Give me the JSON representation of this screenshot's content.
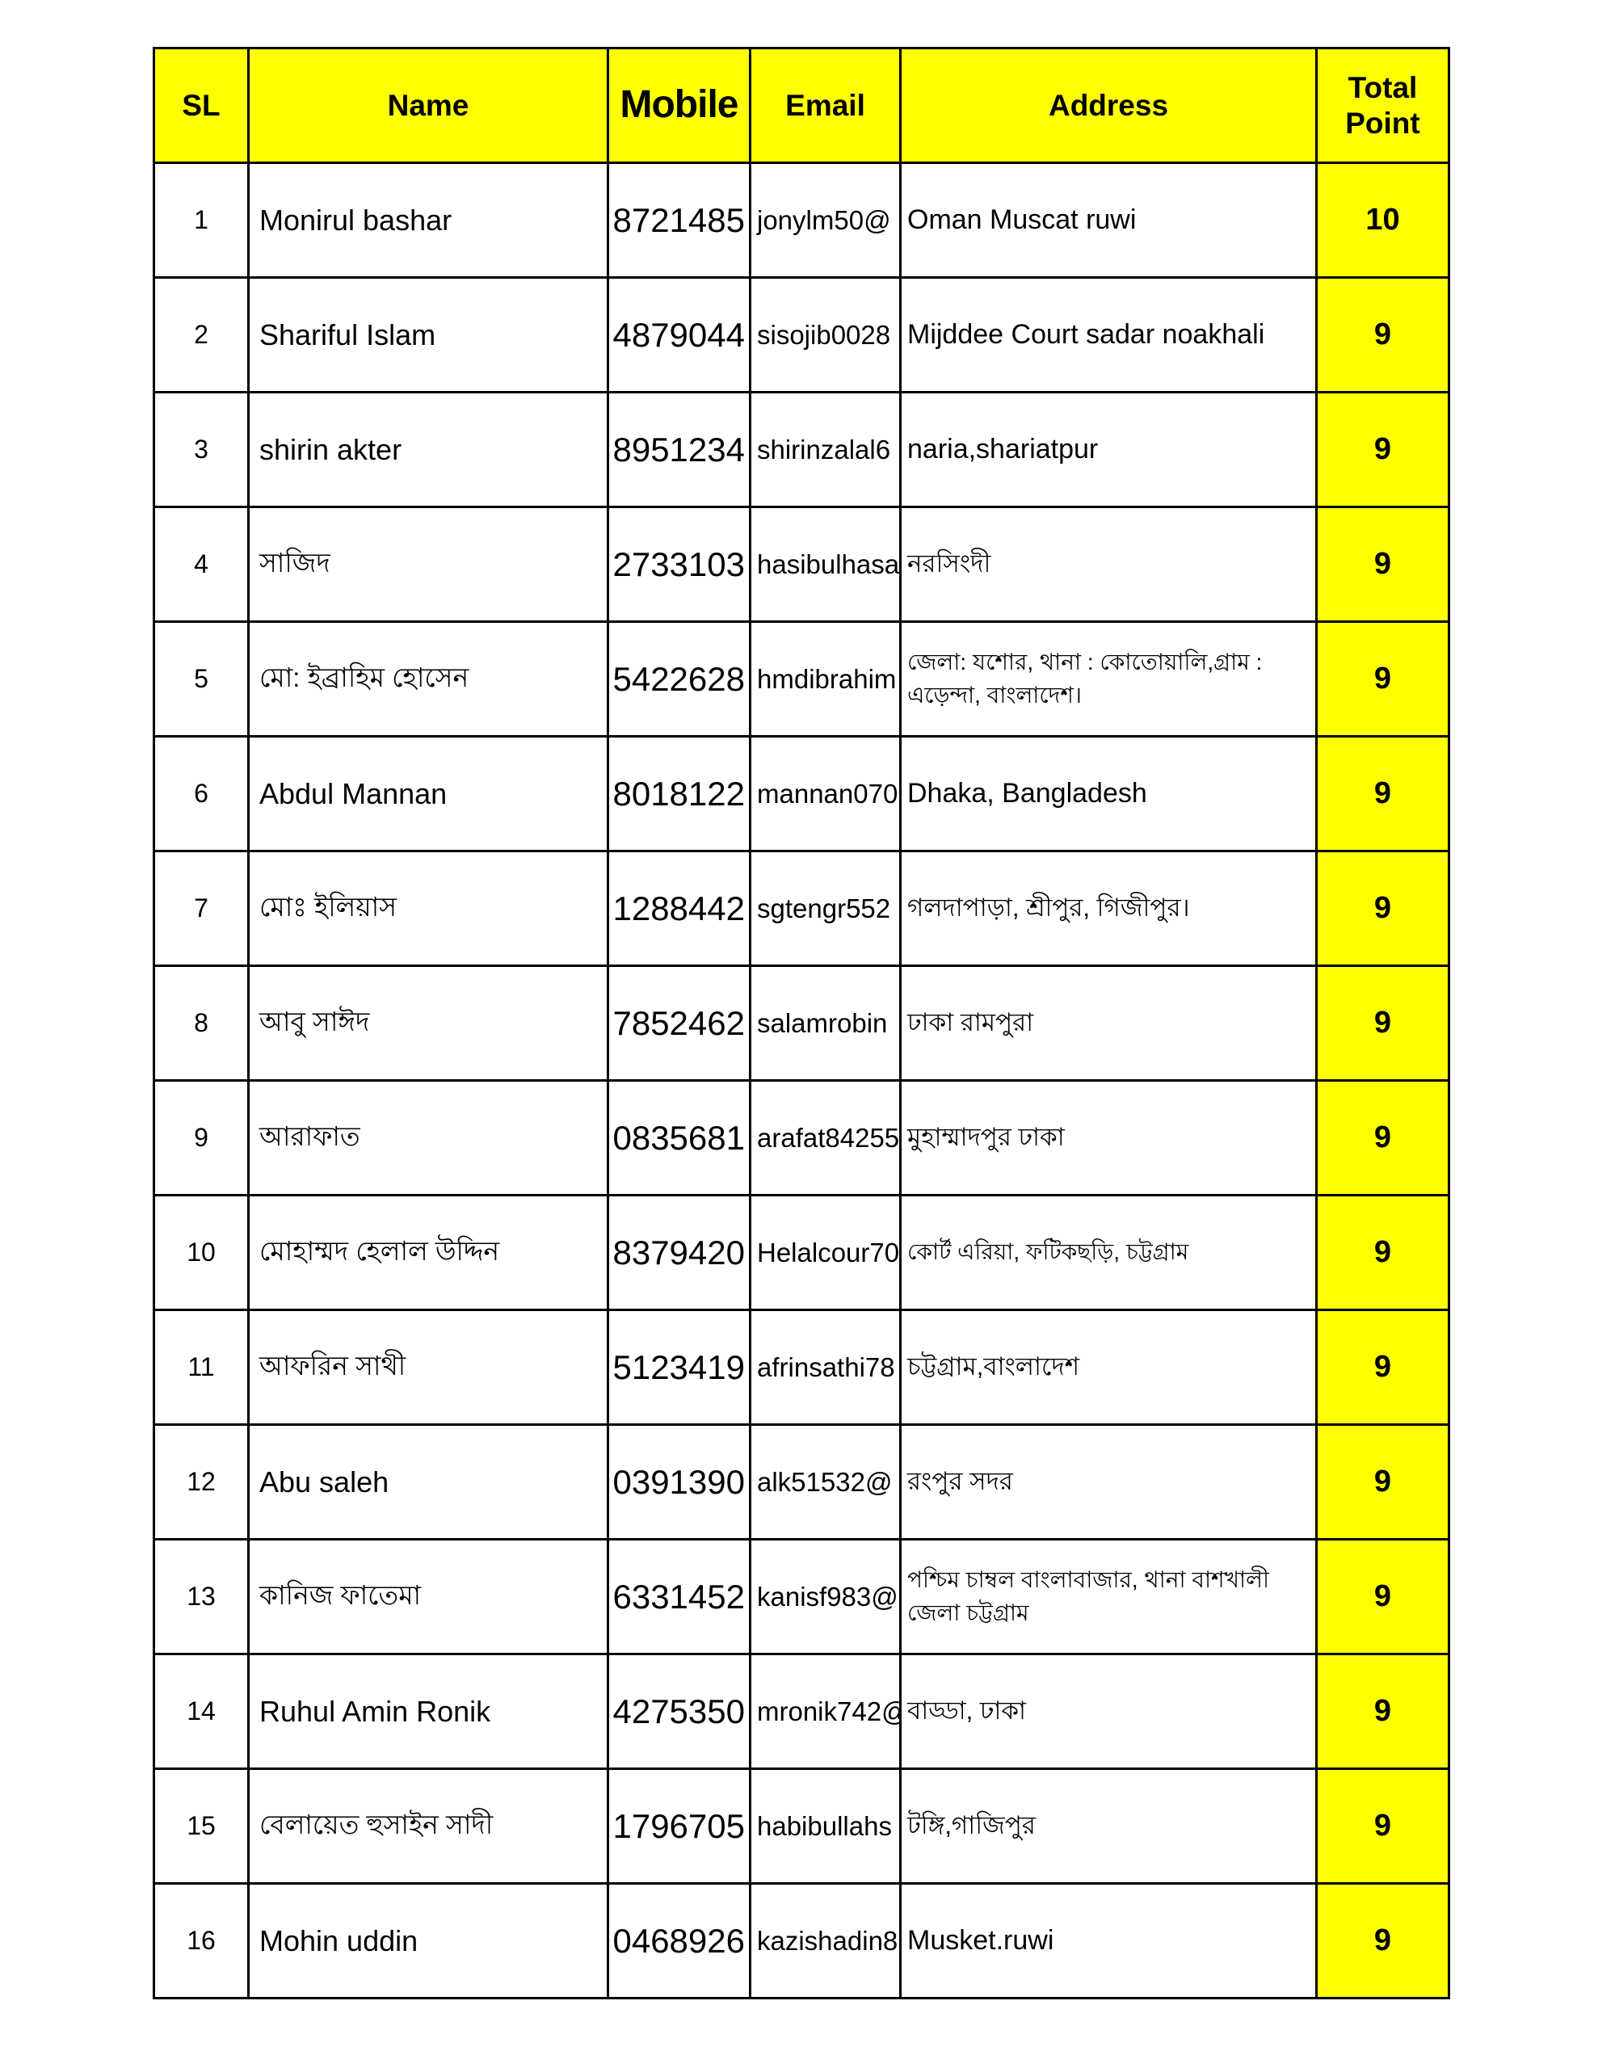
{
  "table": {
    "header": {
      "sl": "SL",
      "name": "Name",
      "mobile": "Mobile",
      "email": "Email",
      "address": "Address",
      "total_point": "Total Point"
    },
    "rows": [
      {
        "sl": "1",
        "name": "Monirul bashar",
        "mobile": "8721485",
        "email": "jonylm50@",
        "address": "Oman Muscat ruwi",
        "point": "10"
      },
      {
        "sl": "2",
        "name": "Shariful Islam",
        "mobile": "4879044",
        "email": "sisojib0028",
        "address": "Mijddee Court sadar noakhali",
        "point": "9"
      },
      {
        "sl": "3",
        "name": "shirin akter",
        "mobile": "8951234",
        "email": "shirinzalal6",
        "address": "naria,shariatpur",
        "point": "9"
      },
      {
        "sl": "4",
        "name": "সাজিদ",
        "mobile": "2733103",
        "email": "hasibulhasa",
        "address": "নরসিংদী",
        "point": "9"
      },
      {
        "sl": "5",
        "name": "মো: ইব্রাহিম হোসেন",
        "mobile": "5422628",
        "email": "hmdibrahim",
        "address": "জেলা: যশোর, থানা : কোতোয়ালি,গ্রাম : এড়েন্দা,  বাংলাদেশ।",
        "point": "9"
      },
      {
        "sl": "6",
        "name": "Abdul Mannan",
        "mobile": "8018122",
        "email": "mannan070",
        "address": "Dhaka, Bangladesh",
        "point": "9"
      },
      {
        "sl": "7",
        "name": "মোঃ ইলিয়াস",
        "mobile": "1288442",
        "email": "sgtengr552",
        "address": "গলদাপাড়া, শ্রীপুর, গিজীপুর।",
        "point": "9"
      },
      {
        "sl": "8",
        "name": "আবু সাঈদ",
        "mobile": "7852462",
        "email": "salamrobin",
        "address": "ঢাকা রামপুরা",
        "point": "9"
      },
      {
        "sl": "9",
        "name": "আরাফাত",
        "mobile": "0835681",
        "email": "arafat84255",
        "address": "মুহাম্মাদপুর ঢাকা",
        "point": "9"
      },
      {
        "sl": "10",
        "name": "মোহাম্মদ হেলাল উদ্দিন",
        "mobile": "8379420",
        "email": "Helalcour70",
        "address": "কোর্ট এরিয়া, ফটিকছড়ি, চট্টগ্রাম",
        "point": "9"
      },
      {
        "sl": "11",
        "name": "আফরিন সাথী",
        "mobile": "5123419",
        "email": "afrinsathi78",
        "address": "চট্টগ্রাম,বাংলাদেশ",
        "point": "9"
      },
      {
        "sl": "12",
        "name": "Abu saleh",
        "mobile": "0391390",
        "email": "alk51532@",
        "address": "রংপুর সদর",
        "point": "9"
      },
      {
        "sl": "13",
        "name": "কানিজ ফাতেমা",
        "mobile": "6331452",
        "email": "kanisf983@",
        "address": "পশ্চিম চাম্বল বাংলাবাজার, থানা বাশখালী জেলা চট্টগ্রাম",
        "point": "9"
      },
      {
        "sl": "14",
        "name": "Ruhul Amin Ronik",
        "mobile": "4275350",
        "email": "mronik742@",
        "address": "বাড্ডা, ঢাকা",
        "point": "9"
      },
      {
        "sl": "15",
        "name": "বেলায়েত হুসাইন সাদী",
        "mobile": "1796705",
        "email": "habibullahs",
        "address": "টঙ্গি,গাজিপুর",
        "point": "9"
      },
      {
        "sl": "16",
        "name": "Mohin uddin",
        "mobile": "0468926",
        "email": "kazishadin8",
        "address": "Musket.ruwi",
        "point": "9"
      }
    ]
  },
  "colors": {
    "header_bg": "#ffff00",
    "point_bg": "#ffff00",
    "border": "#000000",
    "text": "#000000",
    "page_bg": "#ffffff"
  }
}
